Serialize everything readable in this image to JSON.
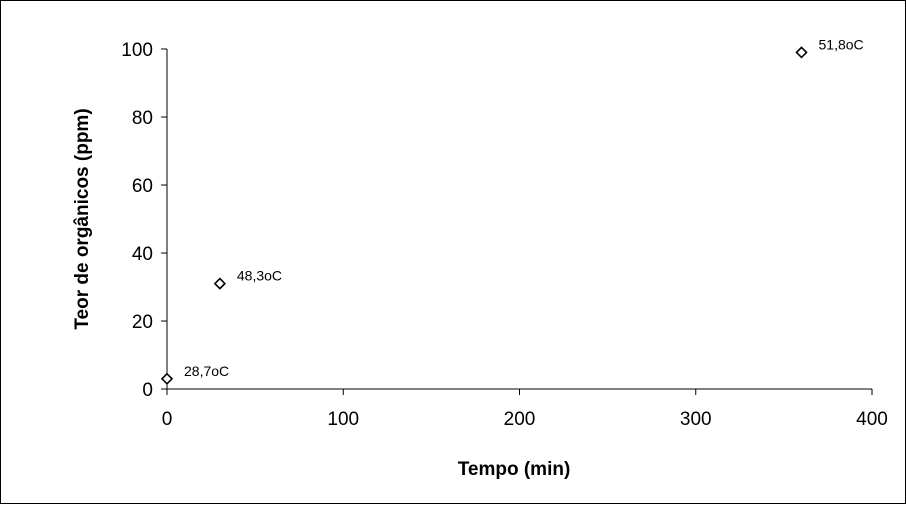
{
  "chart_data": {
    "type": "scatter",
    "title": "",
    "xlabel": "Tempo (min)",
    "ylabel": "Teor de orgânicos (ppm)",
    "xlim": [
      0,
      400
    ],
    "ylim": [
      0,
      100
    ],
    "xticks": [
      0,
      100,
      200,
      300,
      400
    ],
    "yticks": [
      0,
      20,
      40,
      60,
      80,
      100
    ],
    "xtick_labels": [
      "0",
      "100",
      "200",
      "300",
      "400"
    ],
    "ytick_labels": [
      "0",
      "20",
      "40",
      "60",
      "80",
      "100"
    ],
    "grid": false,
    "legend": "none",
    "marker": "diamond-open",
    "marker_color": "#000000",
    "series": [
      {
        "x": [
          0,
          30,
          360
        ],
        "y": [
          3,
          31,
          99
        ],
        "point_labels": [
          "28,7oC",
          "48,3oC",
          "51,8oC"
        ]
      }
    ]
  }
}
